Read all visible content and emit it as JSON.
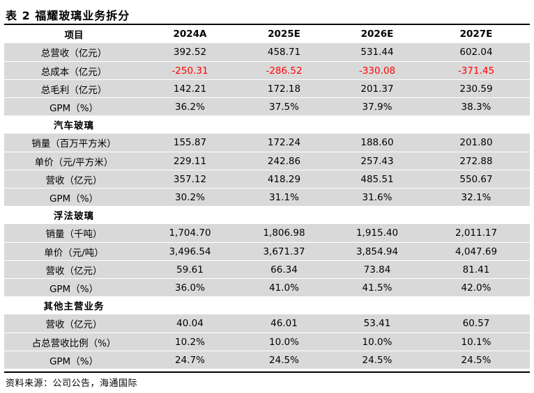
{
  "title": "表 2 福耀玻璃业务拆分",
  "header": [
    "项目",
    "2024A",
    "2025E",
    "2026E",
    "2027E"
  ],
  "rows": [
    {
      "type": "data",
      "label": "总营收（亿元）",
      "values": [
        "392.52",
        "458.71",
        "531.44",
        "602.04"
      ]
    },
    {
      "type": "data",
      "label": "总成本（亿元）",
      "values": [
        "-250.31",
        "-286.52",
        "-330.08",
        "-371.45"
      ]
    },
    {
      "type": "data",
      "label": "总毛利（亿元）",
      "values": [
        "142.21",
        "172.18",
        "201.37",
        "230.59"
      ]
    },
    {
      "type": "data",
      "label": "GPM（%）",
      "values": [
        "36.2%",
        "37.5%",
        "37.9%",
        "38.3%"
      ]
    },
    {
      "type": "section",
      "label": "汽车玻璃"
    },
    {
      "type": "data",
      "label": "销量（百万平方米）",
      "values": [
        "155.87",
        "172.24",
        "188.60",
        "201.80"
      ]
    },
    {
      "type": "data",
      "label": "单价（元/平方米）",
      "values": [
        "229.11",
        "242.86",
        "257.43",
        "272.88"
      ]
    },
    {
      "type": "data",
      "label": "营收（亿元）",
      "values": [
        "357.12",
        "418.29",
        "485.51",
        "550.67"
      ]
    },
    {
      "type": "data",
      "label": "GPM（%）",
      "values": [
        "30.2%",
        "31.1%",
        "31.6%",
        "32.1%"
      ]
    },
    {
      "type": "section",
      "label": "浮法玻璃"
    },
    {
      "type": "data",
      "label": "销量（千吨）",
      "values": [
        "1,704.70",
        "1,806.98",
        "1,915.40",
        "2,011.17"
      ]
    },
    {
      "type": "data",
      "label": "单价（元/吨）",
      "values": [
        "3,496.54",
        "3,671.37",
        "3,854.94",
        "4,047.69"
      ]
    },
    {
      "type": "data",
      "label": "营收（亿元）",
      "values": [
        "59.61",
        "66.34",
        "73.84",
        "81.41"
      ]
    },
    {
      "type": "data",
      "label": "GPM（%）",
      "values": [
        "36.0%",
        "41.0%",
        "41.5%",
        "42.0%"
      ]
    },
    {
      "type": "section",
      "label": "其他主营业务"
    },
    {
      "type": "data",
      "label": "营收（亿元）",
      "values": [
        "40.04",
        "46.01",
        "53.41",
        "60.57"
      ]
    },
    {
      "type": "data",
      "label": "占总营收比例（%）",
      "values": [
        "10.2%",
        "10.0%",
        "10.0%",
        "10.1%"
      ]
    },
    {
      "type": "data",
      "label": "GPM（%）",
      "values": [
        "24.7%",
        "24.5%",
        "24.5%",
        "24.5%"
      ]
    }
  ],
  "negative_color": "#ff0000",
  "shade_color": "#d9d9d9",
  "source": "资料来源：公司公告，海通国际"
}
